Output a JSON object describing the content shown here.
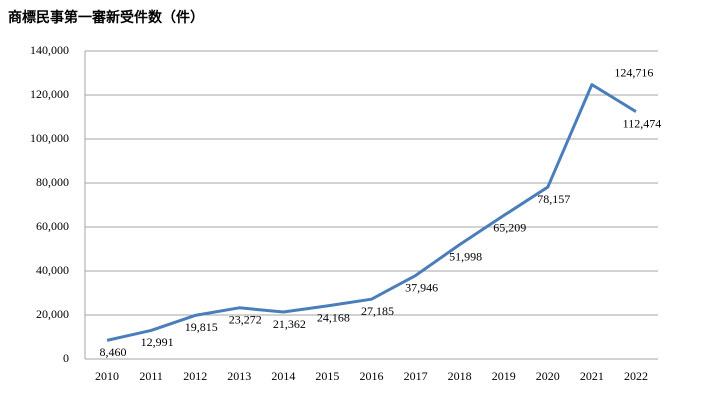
{
  "chart_data": {
    "type": "line",
    "title": "商標民事第一審新受件数（件）",
    "categories": [
      "2010",
      "2011",
      "2012",
      "2013",
      "2014",
      "2015",
      "2016",
      "2017",
      "2018",
      "2019",
      "2020",
      "2021",
      "2022"
    ],
    "values": [
      8460,
      12991,
      19815,
      23272,
      21362,
      24168,
      27185,
      37946,
      51998,
      65209,
      78157,
      124716,
      112474
    ],
    "value_labels": [
      "8,460",
      "12,991",
      "19,815",
      "23,272",
      "21,362",
      "24,168",
      "27,185",
      "37,946",
      "51,998",
      "65,209",
      "78,157",
      "124,716",
      "112,474"
    ],
    "color": "#4a7ebb",
    "ylim": [
      0,
      140000
    ],
    "yticks": [
      0,
      {
        "value": 20000,
        "label": "20,000"
      },
      {
        "value": 40000,
        "label": "40,000"
      },
      {
        "value": 60000,
        "label": "60,000"
      },
      {
        "value": 80000,
        "label": "80,000"
      },
      {
        "value": 100000,
        "label": "100,000"
      },
      {
        "value": 120000,
        "label": "120,000"
      },
      {
        "value": 140000,
        "label": "140,000"
      }
    ],
    "grid": true
  }
}
